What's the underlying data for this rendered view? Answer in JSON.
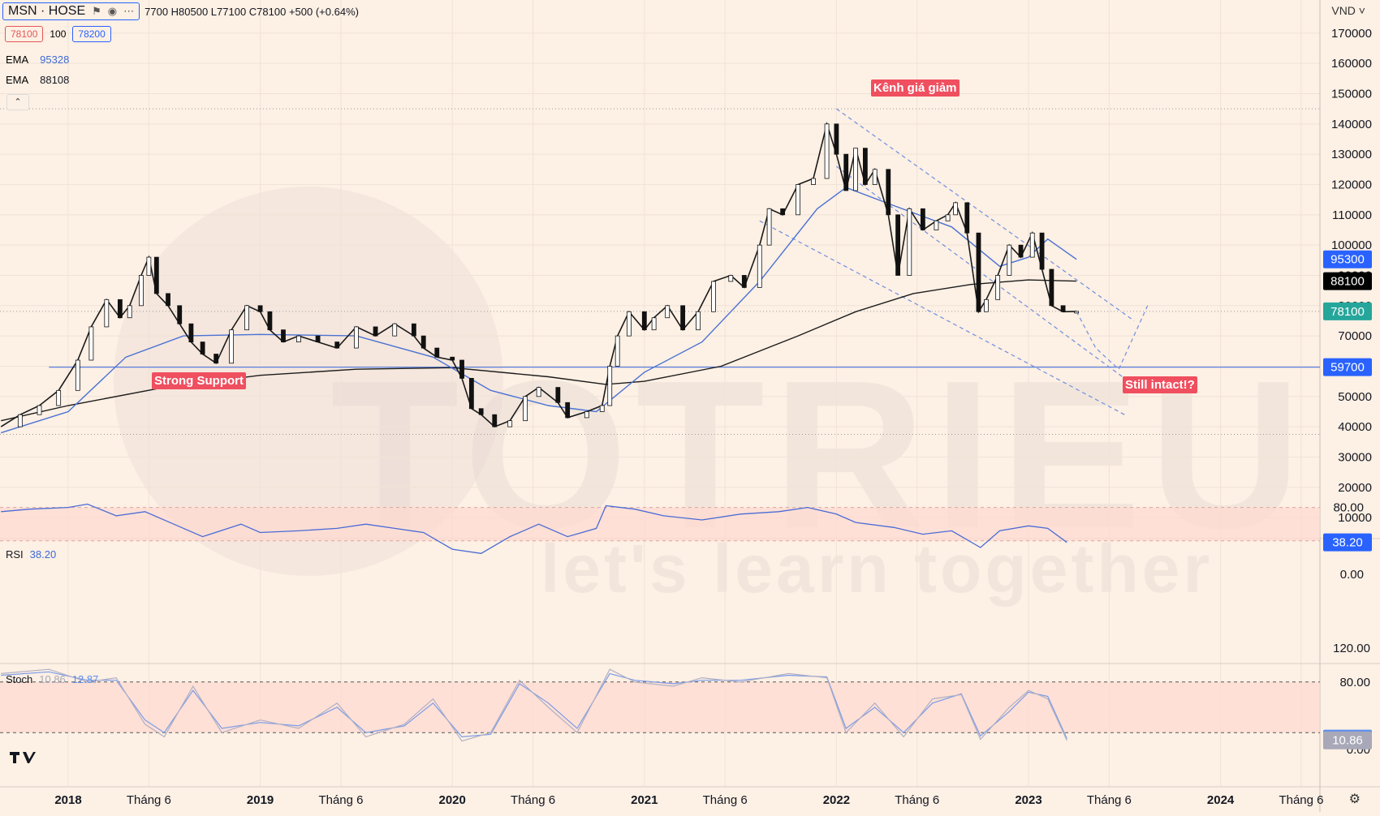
{
  "header": {
    "symbol": "MSN · HOSE",
    "icons": [
      "flag-icon",
      "eye-icon",
      "more-icon"
    ],
    "ohlc": "7700 H80500 L77100 C78100 +500 (+0.64%)",
    "sell_price": "78100",
    "spread": "100",
    "buy_price": "78200"
  },
  "indicators": {
    "ema1_label": "EMA",
    "ema1_value": "95328",
    "ema2_label": "EMA",
    "ema2_value": "88108",
    "collapse_icon": "chevron-up-icon",
    "rsi_label": "RSI",
    "rsi_value": "38.20",
    "stoch_label": "Stoch",
    "stoch_k": "10.86",
    "stoch_d": "12.87"
  },
  "price_axis": {
    "currency": "VND",
    "ticks": [
      "170000",
      "160000",
      "150000",
      "140000",
      "130000",
      "120000",
      "110000",
      "100000",
      "90000",
      "80000",
      "70000",
      "60000",
      "50000",
      "40000",
      "30000",
      "20000",
      "10000"
    ],
    "tags": [
      {
        "label": "95300",
        "value": 95300,
        "color": "#2962ff"
      },
      {
        "label": "88100",
        "value": 88100,
        "color": "#000000"
      },
      {
        "label": "78100",
        "value": 78100,
        "color": "#26a69a"
      },
      {
        "label": "59700",
        "value": 59700,
        "color": "#2962ff"
      }
    ]
  },
  "rsi_axis": {
    "ticks": [
      {
        "label": "80.00",
        "value": 80
      },
      {
        "label": "0.00",
        "value": 0
      }
    ],
    "tag": {
      "label": "38.20",
      "value": 38.2,
      "color": "#2962ff"
    }
  },
  "stoch_axis": {
    "ticks": [
      {
        "label": "120.00",
        "value": 120
      },
      {
        "label": "80.00",
        "value": 80
      },
      {
        "label": "0.00",
        "value": 0
      }
    ],
    "tags": [
      {
        "label": "12.87",
        "value": 12.87,
        "color": "#5b8def"
      },
      {
        "label": "10.86",
        "value": 10.86,
        "color": "#a8a8b8"
      }
    ]
  },
  "time_axis": {
    "labels": [
      {
        "text": "2018",
        "date": 2018.0,
        "bold": true
      },
      {
        "text": "Tháng 6",
        "date": 2018.42
      },
      {
        "text": "2019",
        "date": 2019.0,
        "bold": true
      },
      {
        "text": "Tháng 6",
        "date": 2019.42
      },
      {
        "text": "2020",
        "date": 2020.0,
        "bold": true
      },
      {
        "text": "Tháng 6",
        "date": 2020.42
      },
      {
        "text": "2021",
        "date": 2021.0,
        "bold": true
      },
      {
        "text": "Tháng 6",
        "date": 2021.42
      },
      {
        "text": "2022",
        "date": 2022.0,
        "bold": true
      },
      {
        "text": "Tháng 6",
        "date": 2022.42
      },
      {
        "text": "2023",
        "date": 2023.0,
        "bold": true
      },
      {
        "text": "Tháng 6",
        "date": 2023.42
      },
      {
        "text": "2024",
        "date": 2024.0,
        "bold": true
      },
      {
        "text": "Tháng 6",
        "date": 2024.42
      }
    ]
  },
  "annotations": {
    "top": "Kênh giá giảm",
    "support": "Strong Support",
    "intact": "Still intact!?"
  },
  "watermark": {
    "brand": "TOTRIEU",
    "slogan": "let's learn together"
  },
  "footer_icons": [
    "tradingview-logo-icon",
    "gear-icon"
  ],
  "chart_data": {
    "type": "line",
    "x_unit": "year",
    "price_range": [
      0,
      175000
    ],
    "grid": true,
    "close": [
      [
        2017.65,
        40000
      ],
      [
        2017.75,
        44000
      ],
      [
        2017.85,
        47000
      ],
      [
        2017.95,
        52000
      ],
      [
        2018.05,
        62000
      ],
      [
        2018.12,
        73000
      ],
      [
        2018.2,
        82000
      ],
      [
        2018.27,
        76000
      ],
      [
        2018.32,
        80000
      ],
      [
        2018.38,
        90000
      ],
      [
        2018.42,
        96000
      ],
      [
        2018.46,
        84000
      ],
      [
        2018.52,
        80000
      ],
      [
        2018.58,
        74000
      ],
      [
        2018.64,
        68000
      ],
      [
        2018.7,
        64000
      ],
      [
        2018.77,
        61000
      ],
      [
        2018.85,
        72000
      ],
      [
        2018.93,
        80000
      ],
      [
        2019.0,
        78000
      ],
      [
        2019.05,
        72000
      ],
      [
        2019.12,
        68000
      ],
      [
        2019.2,
        70000
      ],
      [
        2019.3,
        68000
      ],
      [
        2019.4,
        66000
      ],
      [
        2019.5,
        73000
      ],
      [
        2019.6,
        70000
      ],
      [
        2019.7,
        74000
      ],
      [
        2019.8,
        70000
      ],
      [
        2019.85,
        66000
      ],
      [
        2019.92,
        63000
      ],
      [
        2020.0,
        62000
      ],
      [
        2020.05,
        56000
      ],
      [
        2020.1,
        46000
      ],
      [
        2020.15,
        44000
      ],
      [
        2020.22,
        40000
      ],
      [
        2020.3,
        42000
      ],
      [
        2020.38,
        50000
      ],
      [
        2020.45,
        53000
      ],
      [
        2020.55,
        48000
      ],
      [
        2020.6,
        43000
      ],
      [
        2020.7,
        45000
      ],
      [
        2020.78,
        47000
      ],
      [
        2020.82,
        60000
      ],
      [
        2020.86,
        70000
      ],
      [
        2020.92,
        78000
      ],
      [
        2021.0,
        72000
      ],
      [
        2021.05,
        76000
      ],
      [
        2021.12,
        80000
      ],
      [
        2021.2,
        72000
      ],
      [
        2021.28,
        78000
      ],
      [
        2021.36,
        88000
      ],
      [
        2021.45,
        90000
      ],
      [
        2021.52,
        86000
      ],
      [
        2021.6,
        100000
      ],
      [
        2021.65,
        112000
      ],
      [
        2021.72,
        110000
      ],
      [
        2021.8,
        120000
      ],
      [
        2021.88,
        122000
      ],
      [
        2021.95,
        140000
      ],
      [
        2022.0,
        130000
      ],
      [
        2022.05,
        118000
      ],
      [
        2022.1,
        132000
      ],
      [
        2022.15,
        120000
      ],
      [
        2022.2,
        125000
      ],
      [
        2022.27,
        110000
      ],
      [
        2022.32,
        90000
      ],
      [
        2022.38,
        112000
      ],
      [
        2022.45,
        105000
      ],
      [
        2022.52,
        108000
      ],
      [
        2022.58,
        110000
      ],
      [
        2022.62,
        114000
      ],
      [
        2022.68,
        104000
      ],
      [
        2022.74,
        78000
      ],
      [
        2022.78,
        82000
      ],
      [
        2022.84,
        90000
      ],
      [
        2022.9,
        100000
      ],
      [
        2022.96,
        96000
      ],
      [
        2023.02,
        104000
      ],
      [
        2023.07,
        92000
      ],
      [
        2023.12,
        80000
      ],
      [
        2023.18,
        78000
      ],
      [
        2023.25,
        78100
      ]
    ],
    "ema_blue": [
      [
        2017.65,
        38000
      ],
      [
        2018.0,
        45000
      ],
      [
        2018.3,
        63000
      ],
      [
        2018.6,
        70000
      ],
      [
        2019.0,
        70500
      ],
      [
        2019.5,
        70000
      ],
      [
        2019.9,
        63000
      ],
      [
        2020.2,
        52000
      ],
      [
        2020.5,
        47000
      ],
      [
        2020.75,
        45000
      ],
      [
        2021.0,
        58000
      ],
      [
        2021.3,
        68000
      ],
      [
        2021.6,
        88000
      ],
      [
        2021.9,
        112000
      ],
      [
        2022.05,
        119000
      ],
      [
        2022.3,
        113000
      ],
      [
        2022.6,
        106000
      ],
      [
        2022.85,
        93000
      ],
      [
        2023.0,
        96000
      ],
      [
        2023.1,
        102000
      ],
      [
        2023.25,
        95300
      ]
    ],
    "ema_black": [
      [
        2017.65,
        42000
      ],
      [
        2018.0,
        47000
      ],
      [
        2018.5,
        53000
      ],
      [
        2019.0,
        57000
      ],
      [
        2019.5,
        59000
      ],
      [
        2020.0,
        59500
      ],
      [
        2020.5,
        56500
      ],
      [
        2020.8,
        54000
      ],
      [
        2021.0,
        55000
      ],
      [
        2021.4,
        60000
      ],
      [
        2021.8,
        70000
      ],
      [
        2022.1,
        78000
      ],
      [
        2022.4,
        84000
      ],
      [
        2022.7,
        87000
      ],
      [
        2023.0,
        88500
      ],
      [
        2023.25,
        88100
      ]
    ],
    "support_level": 59700,
    "upper_resistance": 145000,
    "lower_guide": 37500,
    "current_price": 78100,
    "channel": {
      "upper": [
        [
          2022.0,
          145000
        ],
        [
          2023.55,
          75000
        ]
      ],
      "middle": [
        [
          2022.0,
          126000
        ],
        [
          2023.5,
          56000
        ]
      ],
      "lower": [
        [
          2021.6,
          108000
        ],
        [
          2023.5,
          44000
        ]
      ]
    },
    "projection": [
      [
        2023.25,
        78100
      ],
      [
        2023.35,
        66000
      ],
      [
        2023.47,
        59000
      ],
      [
        2023.62,
        80000
      ]
    ],
    "rsi": {
      "range": [
        0,
        120
      ],
      "band": [
        40,
        80
      ],
      "values": [
        [
          2017.65,
          75
        ],
        [
          2017.8,
          78
        ],
        [
          2018.0,
          80
        ],
        [
          2018.1,
          84
        ],
        [
          2018.25,
          70
        ],
        [
          2018.4,
          75
        ],
        [
          2018.55,
          60
        ],
        [
          2018.7,
          45
        ],
        [
          2018.9,
          60
        ],
        [
          2019.0,
          50
        ],
        [
          2019.2,
          52
        ],
        [
          2019.4,
          55
        ],
        [
          2019.55,
          60
        ],
        [
          2019.7,
          55
        ],
        [
          2019.85,
          50
        ],
        [
          2020.0,
          30
        ],
        [
          2020.15,
          25
        ],
        [
          2020.3,
          45
        ],
        [
          2020.45,
          60
        ],
        [
          2020.6,
          45
        ],
        [
          2020.75,
          55
        ],
        [
          2020.8,
          82
        ],
        [
          2020.95,
          78
        ],
        [
          2021.1,
          70
        ],
        [
          2021.3,
          65
        ],
        [
          2021.5,
          72
        ],
        [
          2021.7,
          75
        ],
        [
          2021.85,
          80
        ],
        [
          2022.0,
          72
        ],
        [
          2022.1,
          62
        ],
        [
          2022.3,
          56
        ],
        [
          2022.45,
          48
        ],
        [
          2022.6,
          52
        ],
        [
          2022.75,
          32
        ],
        [
          2022.85,
          52
        ],
        [
          2023.0,
          58
        ],
        [
          2023.1,
          55
        ],
        [
          2023.2,
          38.2
        ]
      ]
    },
    "stochastic": {
      "range": [
        0,
        120
      ],
      "band": [
        20,
        80
      ],
      "k": [
        [
          2017.65,
          90
        ],
        [
          2017.9,
          95
        ],
        [
          2018.1,
          80
        ],
        [
          2018.25,
          85
        ],
        [
          2018.4,
          30
        ],
        [
          2018.5,
          15
        ],
        [
          2018.65,
          75
        ],
        [
          2018.8,
          20
        ],
        [
          2019.0,
          35
        ],
        [
          2019.2,
          25
        ],
        [
          2019.4,
          55
        ],
        [
          2019.55,
          15
        ],
        [
          2019.75,
          30
        ],
        [
          2019.9,
          60
        ],
        [
          2020.05,
          10
        ],
        [
          2020.2,
          20
        ],
        [
          2020.35,
          82
        ],
        [
          2020.5,
          50
        ],
        [
          2020.65,
          20
        ],
        [
          2020.82,
          95
        ],
        [
          2020.95,
          80
        ],
        [
          2021.15,
          75
        ],
        [
          2021.3,
          85
        ],
        [
          2021.5,
          80
        ],
        [
          2021.75,
          90
        ],
        [
          2021.95,
          85
        ],
        [
          2022.05,
          20
        ],
        [
          2022.2,
          55
        ],
        [
          2022.35,
          15
        ],
        [
          2022.5,
          60
        ],
        [
          2022.65,
          65
        ],
        [
          2022.75,
          12
        ],
        [
          2022.9,
          50
        ],
        [
          2023.0,
          70
        ],
        [
          2023.1,
          60
        ],
        [
          2023.2,
          10.86
        ]
      ],
      "d": [
        [
          2017.65,
          88
        ],
        [
          2017.9,
          92
        ],
        [
          2018.1,
          82
        ],
        [
          2018.25,
          82
        ],
        [
          2018.4,
          35
        ],
        [
          2018.5,
          20
        ],
        [
          2018.65,
          70
        ],
        [
          2018.8,
          25
        ],
        [
          2019.0,
          32
        ],
        [
          2019.2,
          28
        ],
        [
          2019.4,
          50
        ],
        [
          2019.55,
          20
        ],
        [
          2019.75,
          28
        ],
        [
          2019.9,
          55
        ],
        [
          2020.05,
          15
        ],
        [
          2020.2,
          18
        ],
        [
          2020.35,
          78
        ],
        [
          2020.5,
          55
        ],
        [
          2020.65,
          25
        ],
        [
          2020.82,
          90
        ],
        [
          2020.95,
          82
        ],
        [
          2021.15,
          78
        ],
        [
          2021.3,
          82
        ],
        [
          2021.5,
          82
        ],
        [
          2021.75,
          88
        ],
        [
          2021.95,
          86
        ],
        [
          2022.05,
          25
        ],
        [
          2022.2,
          50
        ],
        [
          2022.35,
          20
        ],
        [
          2022.5,
          55
        ],
        [
          2022.65,
          66
        ],
        [
          2022.75,
          16
        ],
        [
          2022.9,
          45
        ],
        [
          2023.0,
          68
        ],
        [
          2023.1,
          63
        ],
        [
          2023.2,
          12.87
        ]
      ]
    }
  }
}
